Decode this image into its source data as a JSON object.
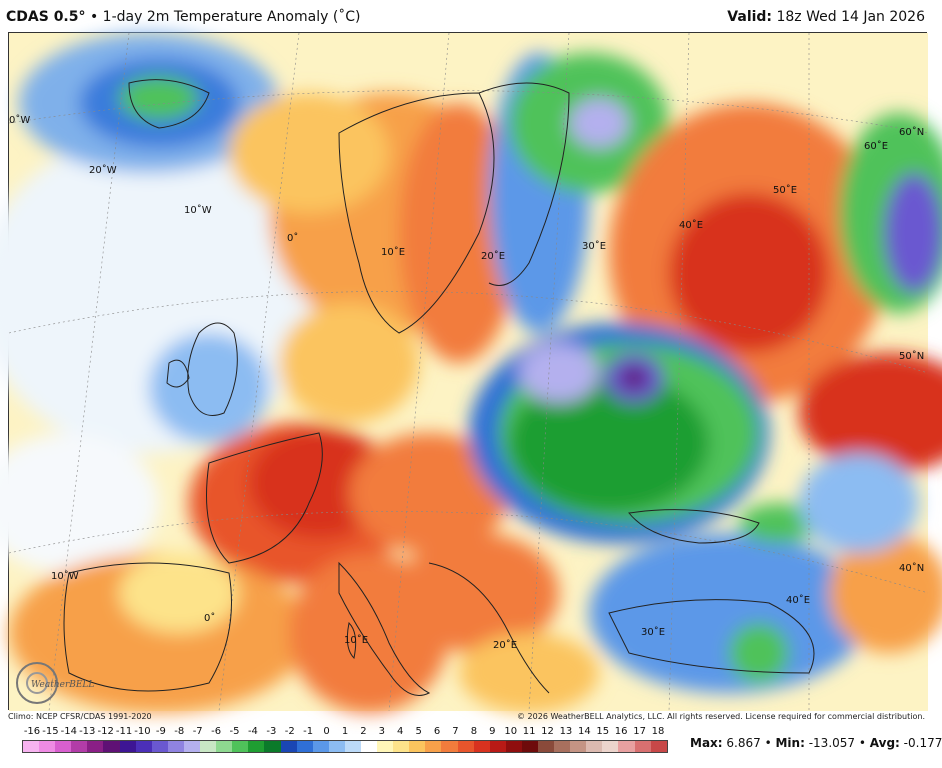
{
  "header": {
    "model": "CDAS 0.5°",
    "separator": "•",
    "title": "1-day 2m Temperature Anomaly (˚C)",
    "valid_label": "Valid:",
    "valid_time": "18z Wed 14 Jan 2026"
  },
  "map": {
    "region": "Europe",
    "grid_labels": [
      "0˚W",
      "20˚W",
      "10˚W",
      "0˚",
      "10˚E",
      "20˚E",
      "30˚E",
      "40˚E",
      "50˚E",
      "60˚E",
      "60˚N",
      "50˚N",
      "40˚N",
      "10˚W",
      "0˚",
      "10˚E",
      "20˚E",
      "30˚E",
      "40˚E"
    ],
    "logo_text": "WeatherBELL"
  },
  "footer": {
    "climo": "Climo: NCEP CFSR/CDAS 1991-2020",
    "copyright": "© 2026 WeatherBELL Analytics, LLC. All rights reserved. License required for commercial distribution."
  },
  "legend": {
    "labels": [
      "-16",
      "-15",
      "-14",
      "-13",
      "-12",
      "-11",
      "-10",
      "-9",
      "-8",
      "-7",
      "-6",
      "-5",
      "-4",
      "-3",
      "-2",
      "-1",
      "0",
      "1",
      "2",
      "3",
      "4",
      "5",
      "6",
      "7",
      "8",
      "9",
      "10",
      "11",
      "12",
      "13",
      "14",
      "15",
      "16",
      "17",
      "18"
    ],
    "colors": [
      "#f7b3f0",
      "#ef8be4",
      "#d85fcf",
      "#b23ca8",
      "#8a1f86",
      "#5f1175",
      "#3d1594",
      "#4b2fb8",
      "#6a58d0",
      "#8f83e0",
      "#b4b0ee",
      "#c8e6c4",
      "#8ed890",
      "#4fc25a",
      "#1f9e32",
      "#0b7a2a",
      "#1a46b4",
      "#2f6fd6",
      "#5b98e8",
      "#8cbcf2",
      "#bcdaf8",
      "#ffffff",
      "#fff6b8",
      "#fde38a",
      "#fbc45e",
      "#f7a04a",
      "#f27c3c",
      "#e8552c",
      "#d8321f",
      "#b91a16",
      "#8f0e0e",
      "#6e0b0b",
      "#8a4a3a",
      "#a8705e",
      "#c49484",
      "#dcbab0",
      "#ecd4cc",
      "#e8a0a0",
      "#d87070",
      "#c84848"
    ]
  },
  "stats": {
    "max_label": "Max:",
    "max": "6.867",
    "min_label": "Min:",
    "min": "-13.057",
    "avg_label": "Avg:",
    "avg": "-0.177"
  }
}
